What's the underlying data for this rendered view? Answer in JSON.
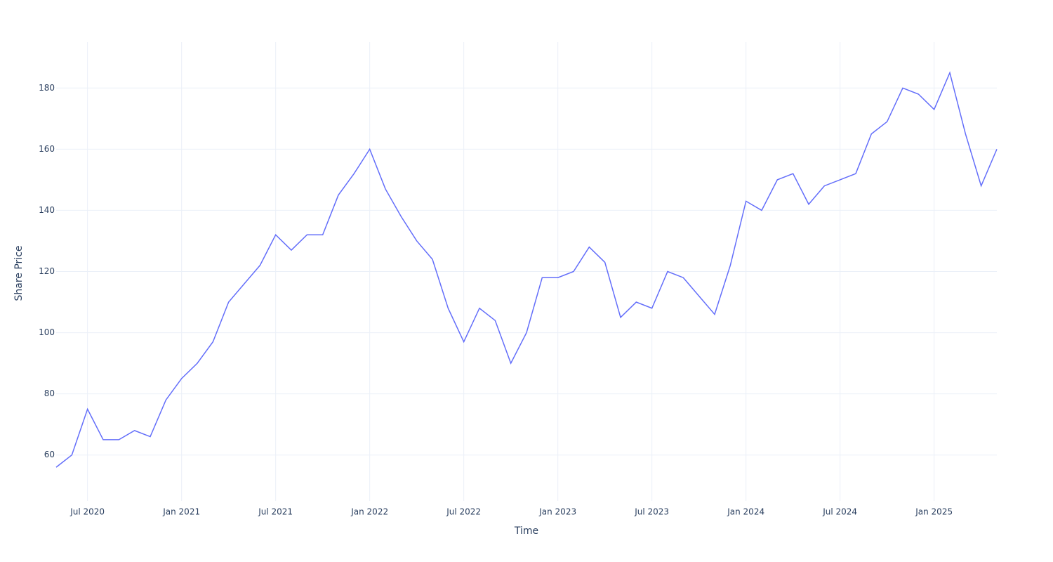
{
  "chart_data": {
    "type": "line",
    "x_label": "Time",
    "y_label": "Share Price",
    "x": [
      "2020-05",
      "2020-06",
      "2020-07",
      "2020-08",
      "2020-09",
      "2020-10",
      "2020-11",
      "2020-12",
      "2021-01",
      "2021-02",
      "2021-03",
      "2021-04",
      "2021-05",
      "2021-06",
      "2021-07",
      "2021-08",
      "2021-09",
      "2021-10",
      "2021-11",
      "2021-12",
      "2022-01",
      "2022-02",
      "2022-03",
      "2022-04",
      "2022-05",
      "2022-06",
      "2022-07",
      "2022-08",
      "2022-09",
      "2022-10",
      "2022-11",
      "2022-12",
      "2023-01",
      "2023-02",
      "2023-03",
      "2023-04",
      "2023-05",
      "2023-06",
      "2023-07",
      "2023-08",
      "2023-09",
      "2023-10",
      "2023-11",
      "2023-12",
      "2024-01",
      "2024-02",
      "2024-03",
      "2024-04",
      "2024-05",
      "2024-06",
      "2024-07",
      "2024-08",
      "2024-09",
      "2024-10",
      "2024-11",
      "2024-12",
      "2025-01",
      "2025-02",
      "2025-03",
      "2025-04",
      "2025-05"
    ],
    "series": [
      {
        "name": "Share Price",
        "color": "#636efa",
        "values": [
          56,
          60,
          75,
          65,
          65,
          68,
          66,
          78,
          85,
          90,
          97,
          110,
          116,
          122,
          132,
          127,
          132,
          132,
          145,
          152,
          160,
          147,
          138,
          130,
          124,
          108,
          97,
          108,
          104,
          90,
          100,
          118,
          118,
          120,
          128,
          123,
          105,
          110,
          108,
          120,
          118,
          112,
          106,
          122,
          143,
          140,
          150,
          152,
          142,
          148,
          150,
          152,
          165,
          169,
          180,
          178,
          173,
          185,
          165,
          148,
          160
        ]
      }
    ],
    "xlim": [
      "2020-05",
      "2025-05"
    ],
    "xticks": [
      {
        "value": "2020-07",
        "label": "Jul 2020"
      },
      {
        "value": "2021-01",
        "label": "Jan 2021"
      },
      {
        "value": "2021-07",
        "label": "Jul 2021"
      },
      {
        "value": "2022-01",
        "label": "Jan 2022"
      },
      {
        "value": "2022-07",
        "label": "Jul 2022"
      },
      {
        "value": "2023-01",
        "label": "Jan 2023"
      },
      {
        "value": "2023-07",
        "label": "Jul 2023"
      },
      {
        "value": "2024-01",
        "label": "Jan 2024"
      },
      {
        "value": "2024-07",
        "label": "Jul 2024"
      },
      {
        "value": "2025-01",
        "label": "Jan 2025"
      }
    ],
    "ylim": [
      45,
      195
    ],
    "yticks": [
      60,
      80,
      100,
      120,
      140,
      160,
      180
    ],
    "grid": true
  }
}
